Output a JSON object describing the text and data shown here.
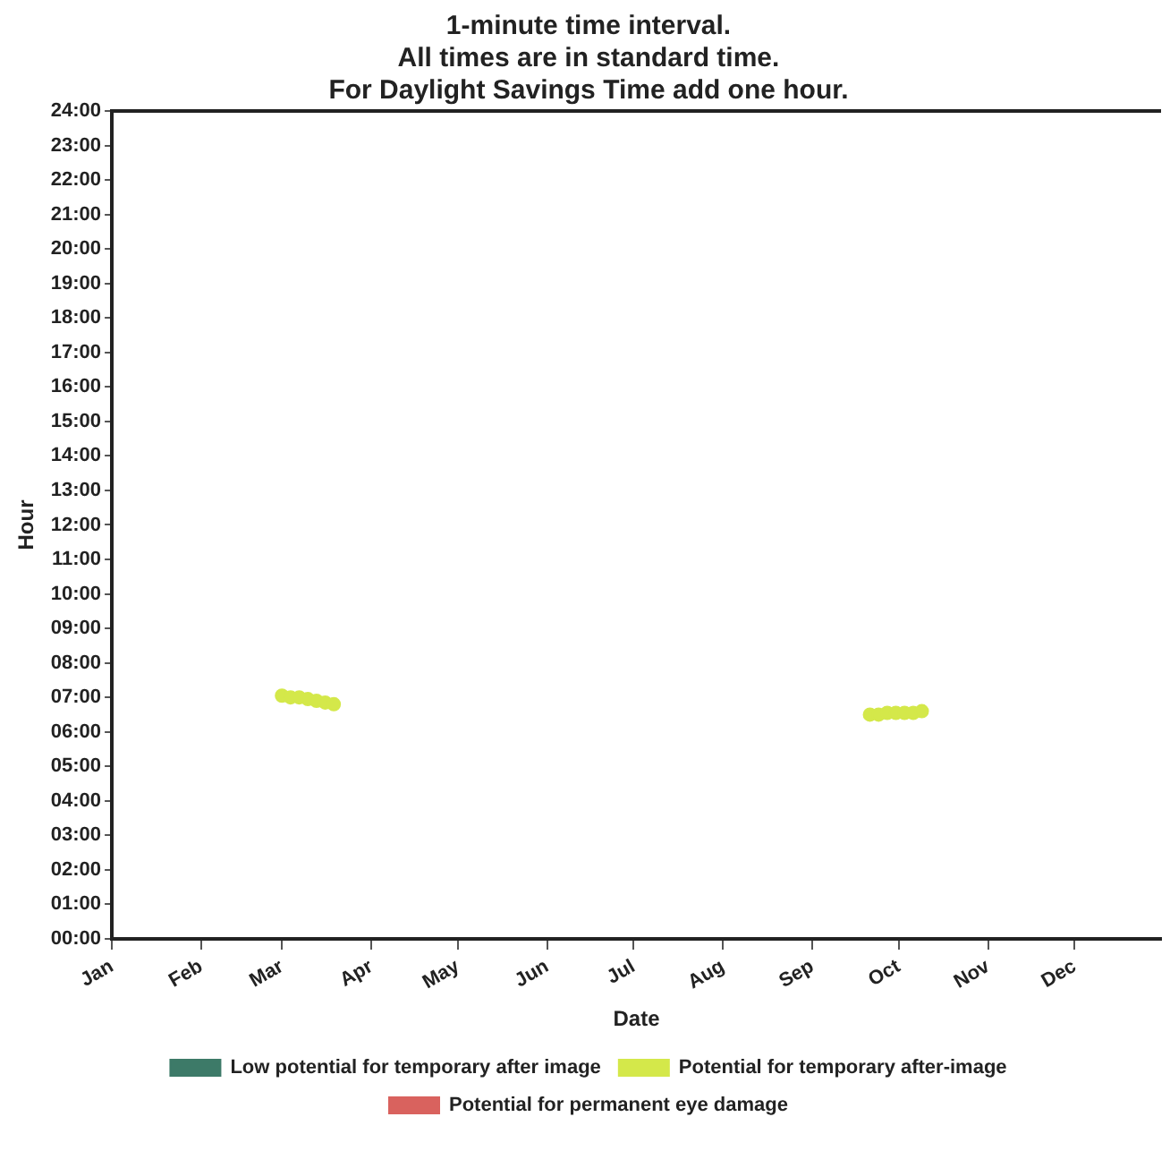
{
  "chart_data": {
    "type": "scatter",
    "title": [
      "1-minute time interval.",
      "All times are in standard time.",
      "For Daylight Savings Time add one hour."
    ],
    "xlabel": "Date",
    "ylabel": "Hour",
    "xlim": [
      "--01-01",
      "--12-31"
    ],
    "xticks": [
      {
        "value": "--01-01",
        "label": "Jan"
      },
      {
        "value": "--02-01",
        "label": "Feb"
      },
      {
        "value": "--03-01",
        "label": "Mar"
      },
      {
        "value": "--04-01",
        "label": "Apr"
      },
      {
        "value": "--05-01",
        "label": "May"
      },
      {
        "value": "--06-01",
        "label": "Jun"
      },
      {
        "value": "--07-01",
        "label": "Jul"
      },
      {
        "value": "--08-01",
        "label": "Aug"
      },
      {
        "value": "--09-01",
        "label": "Sep"
      },
      {
        "value": "--10-01",
        "label": "Oct"
      },
      {
        "value": "--11-01",
        "label": "Nov"
      },
      {
        "value": "--12-01",
        "label": "Dec"
      }
    ],
    "ylim": [
      0,
      24
    ],
    "yticks": [
      {
        "value": 0,
        "label": "00:00"
      },
      {
        "value": 1,
        "label": "01:00"
      },
      {
        "value": 2,
        "label": "02:00"
      },
      {
        "value": 3,
        "label": "03:00"
      },
      {
        "value": 4,
        "label": "04:00"
      },
      {
        "value": 5,
        "label": "05:00"
      },
      {
        "value": 6,
        "label": "06:00"
      },
      {
        "value": 7,
        "label": "07:00"
      },
      {
        "value": 8,
        "label": "08:00"
      },
      {
        "value": 9,
        "label": "09:00"
      },
      {
        "value": 10,
        "label": "10:00"
      },
      {
        "value": 11,
        "label": "11:00"
      },
      {
        "value": 12,
        "label": "12:00"
      },
      {
        "value": 13,
        "label": "13:00"
      },
      {
        "value": 14,
        "label": "14:00"
      },
      {
        "value": 15,
        "label": "15:00"
      },
      {
        "value": 16,
        "label": "16:00"
      },
      {
        "value": 17,
        "label": "17:00"
      },
      {
        "value": 18,
        "label": "18:00"
      },
      {
        "value": 19,
        "label": "19:00"
      },
      {
        "value": 20,
        "label": "20:00"
      },
      {
        "value": 21,
        "label": "21:00"
      },
      {
        "value": 22,
        "label": "22:00"
      },
      {
        "value": 23,
        "label": "23:00"
      },
      {
        "value": 24,
        "label": "24:00"
      }
    ],
    "series": [
      {
        "name": "Low potential for temporary after image",
        "color": "#3d7a68"
      },
      {
        "name": "Potential for temporary after-image",
        "color": "#d4e84a",
        "x": [
          "--03-01",
          "--03-04",
          "--03-07",
          "--03-10",
          "--03-13",
          "--03-16",
          "--03-19",
          "--09-21",
          "--09-24",
          "--09-27",
          "--09-30",
          "--10-03",
          "--10-06",
          "--10-09"
        ],
        "values": [
          7.05,
          7.0,
          7.0,
          6.95,
          6.9,
          6.85,
          6.8,
          6.5,
          6.5,
          6.55,
          6.55,
          6.55,
          6.55,
          6.6
        ]
      },
      {
        "name": "Potential for permanent eye damage",
        "color": "#d9625e"
      }
    ],
    "marker": "circle",
    "grid": false,
    "legend": "bottom"
  }
}
